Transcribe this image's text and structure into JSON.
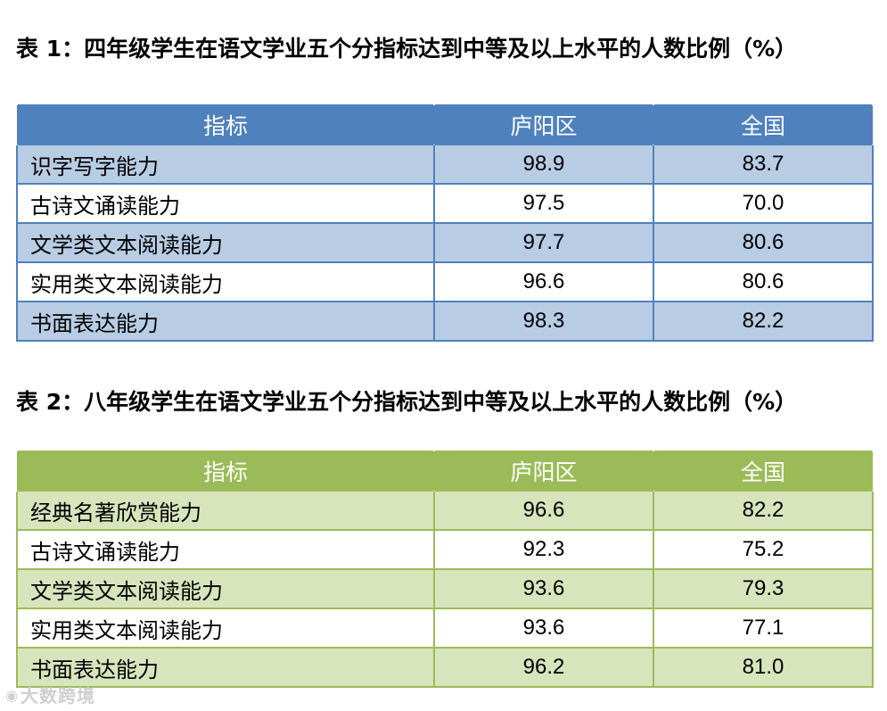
{
  "chart_data": [
    {
      "type": "table",
      "title": "表 1：四年级学生在语文学业五个分指标达到中等及以上水平的人数比例（%）",
      "columns": [
        "指标",
        "庐阳区",
        "全国"
      ],
      "rows": [
        [
          "识字写字能力",
          "98.9",
          "83.7"
        ],
        [
          "古诗文诵读能力",
          "97.5",
          "70.0"
        ],
        [
          "文学类文本阅读能力",
          "97.7",
          "80.6"
        ],
        [
          "实用类文本阅读能力",
          "96.6",
          "80.6"
        ],
        [
          "书面表达能力",
          "98.3",
          "82.2"
        ]
      ],
      "colors": {
        "header": "#4f81bd",
        "band": "#b8cce4"
      }
    },
    {
      "type": "table",
      "title": "表 2：八年级学生在语文学业五个分指标达到中等及以上水平的人数比例（%）",
      "columns": [
        "指标",
        "庐阳区",
        "全国"
      ],
      "rows": [
        [
          "经典名著欣赏能力",
          "96.6",
          "82.2"
        ],
        [
          "古诗文诵读能力",
          "92.3",
          "75.2"
        ],
        [
          "文学类文本阅读能力",
          "93.6",
          "79.3"
        ],
        [
          "实用类文本阅读能力",
          "93.6",
          "77.1"
        ],
        [
          "书面表达能力",
          "96.2",
          "81.0"
        ]
      ],
      "colors": {
        "header": "#9bbb59",
        "band": "#d8e4bc"
      }
    }
  ],
  "watermark": {
    "icon": "weibo-icon",
    "text": "大数跨境"
  }
}
